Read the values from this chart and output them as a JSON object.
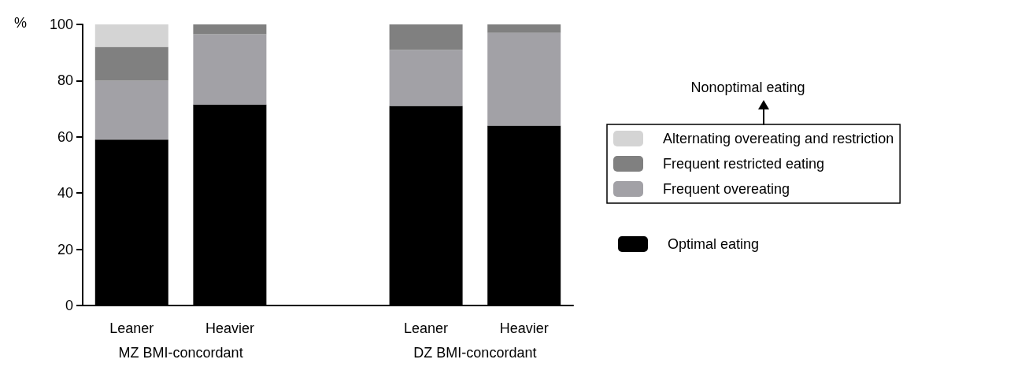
{
  "chart_data": {
    "type": "bar",
    "stacked": true,
    "ylabel": "%",
    "categories": [
      "Leaner",
      "Heavier",
      null,
      "Leaner",
      "Heavier"
    ],
    "series": [
      {
        "name": "Optimal eating",
        "color": "#000000",
        "values": [
          59,
          71.5,
          null,
          71,
          64
        ]
      },
      {
        "name": "Frequent overeating",
        "color": "#a2a1a6",
        "values": [
          21,
          25,
          null,
          20,
          33
        ]
      },
      {
        "name": "Frequent restricted eating",
        "color": "#808080",
        "values": [
          12,
          3.5,
          null,
          9,
          3
        ]
      },
      {
        "name": "Alternating overeating and restriction",
        "color": "#d4d4d4",
        "values": [
          8,
          0,
          null,
          0,
          0
        ]
      }
    ],
    "ylim": [
      0,
      100
    ],
    "yticks": [
      0,
      20,
      40,
      60,
      80,
      100
    ],
    "grid": false,
    "legend": "right",
    "annotations": [
      "MZ BMI-concordant",
      "DZ BMI-concordant",
      "Nonoptimal eating"
    ]
  }
}
